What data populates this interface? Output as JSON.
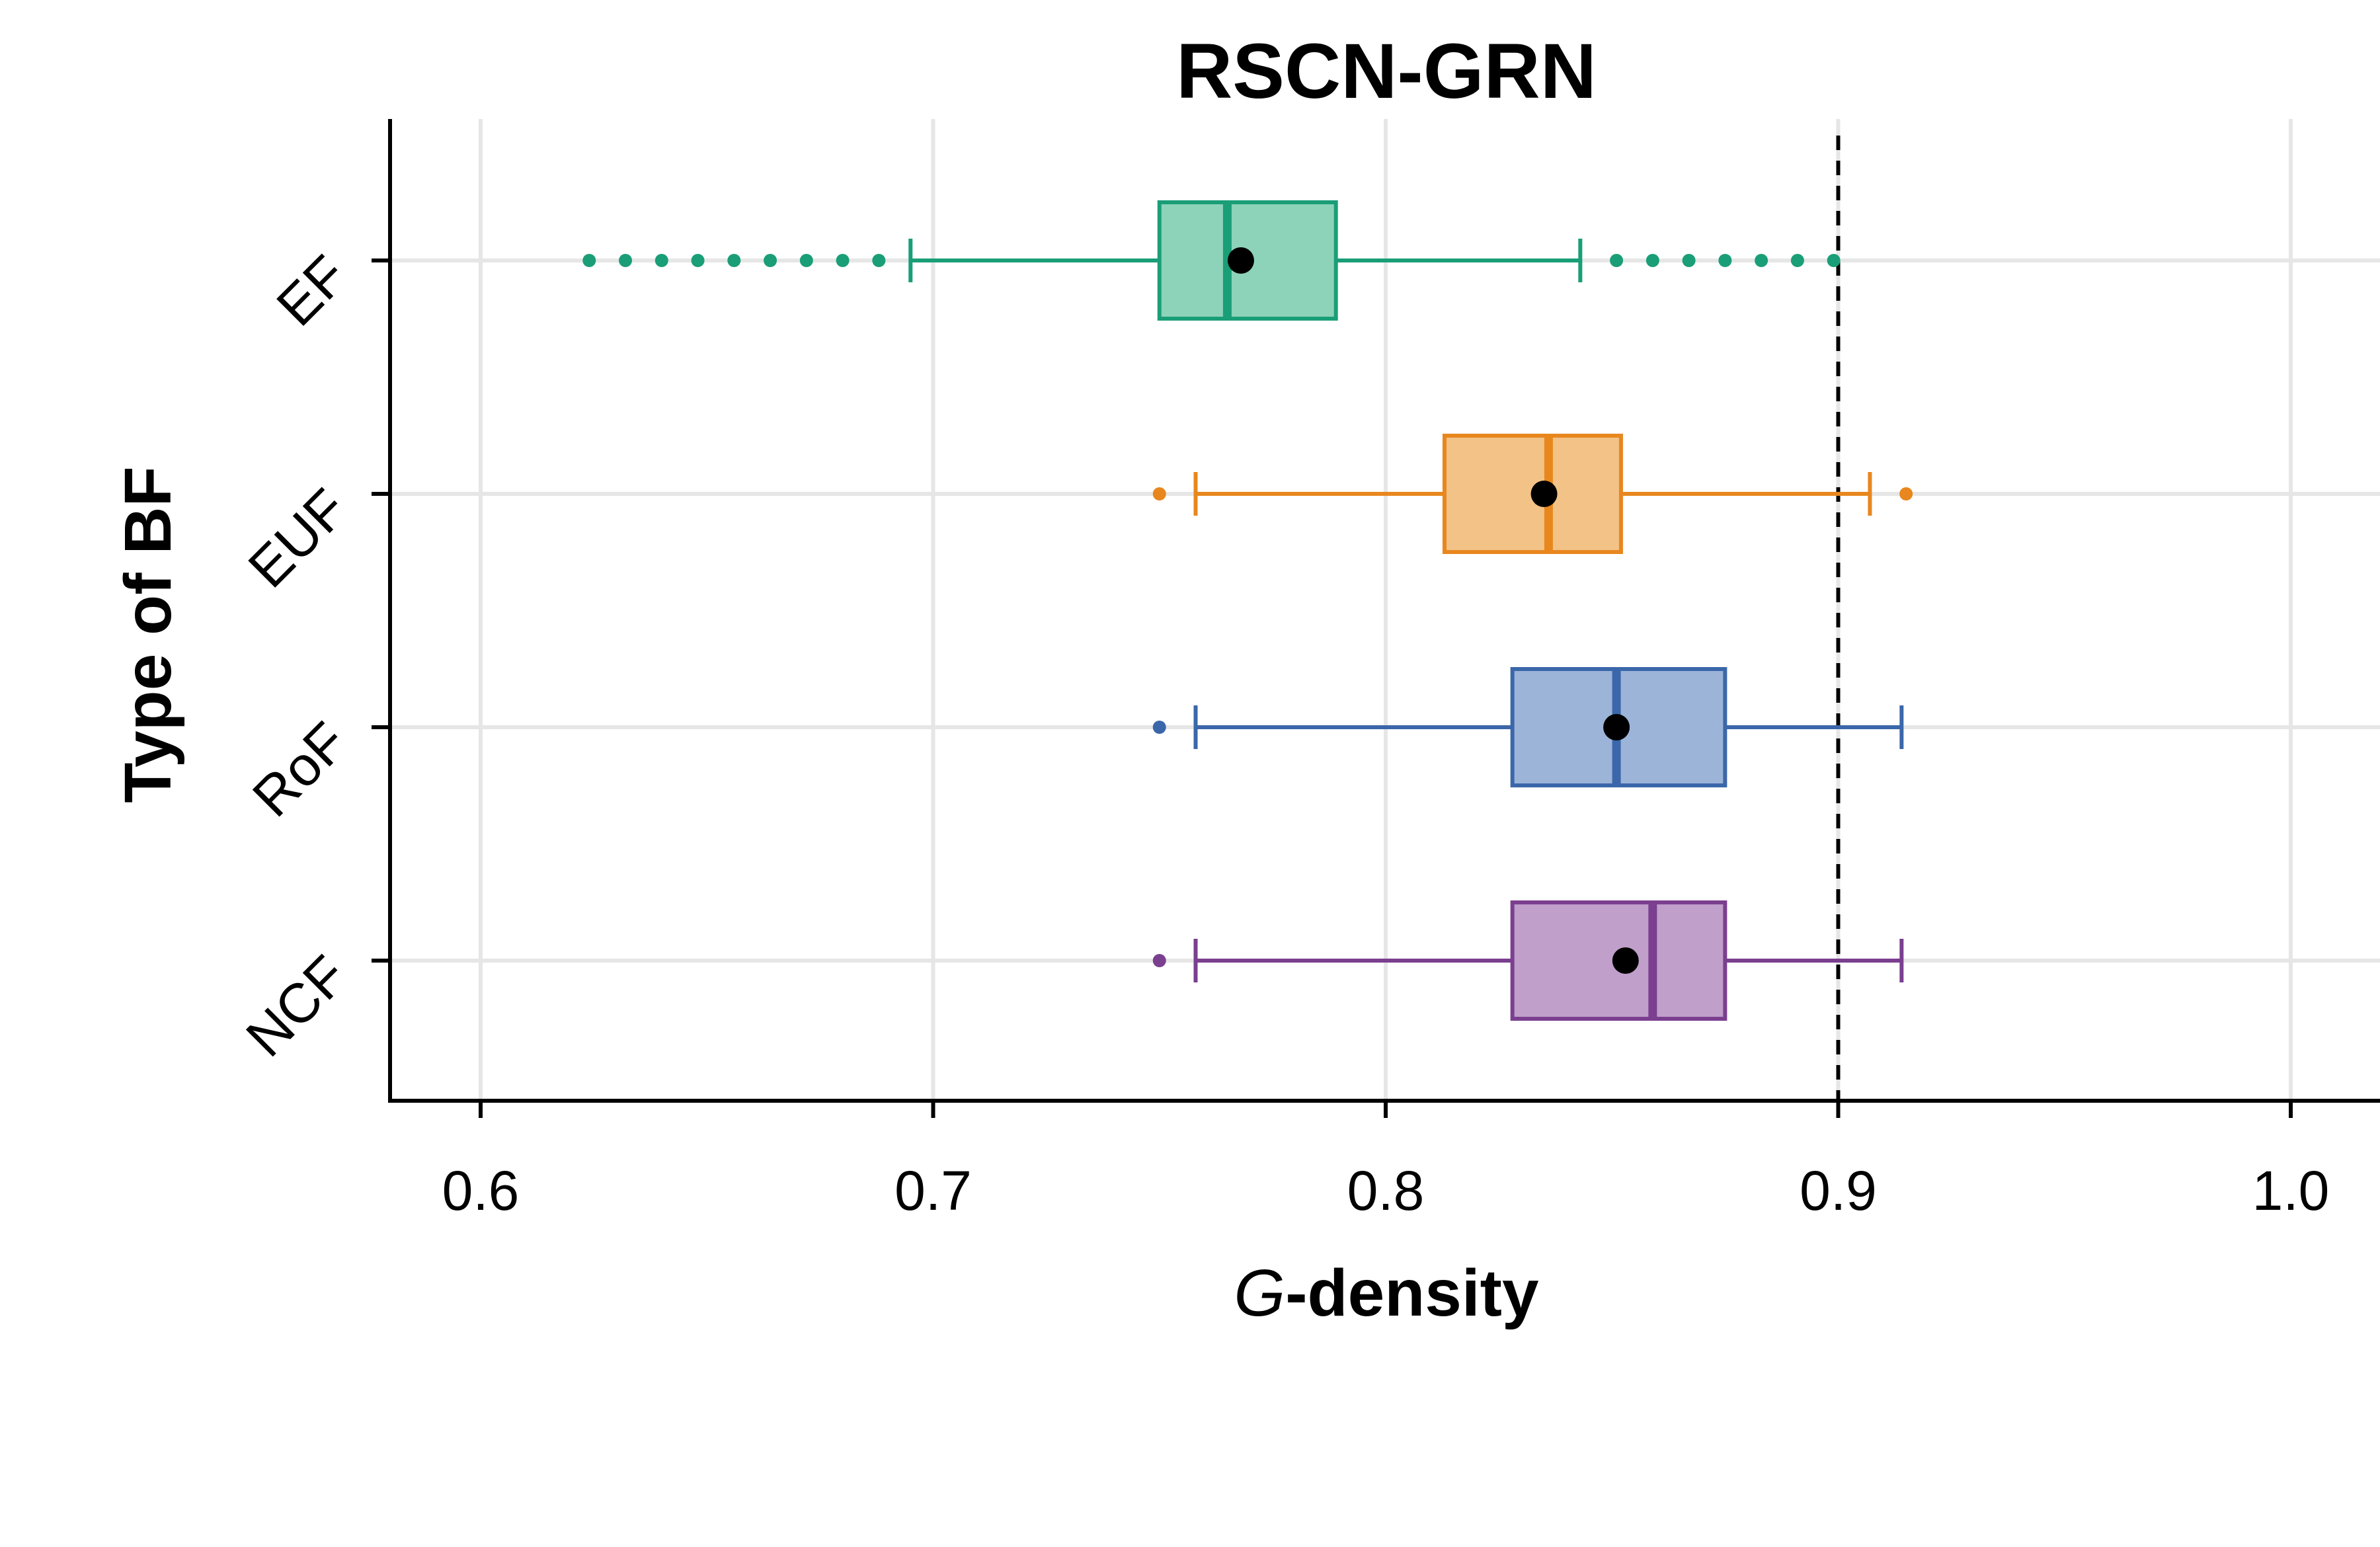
{
  "chart_data": {
    "type": "boxplot",
    "orientation": "horizontal",
    "title": "RSCN-GRN",
    "xlabel_italic": "G",
    "xlabel_rest": "-density",
    "ylabel": "Type of BF",
    "xlim": [
      0.58,
      1.02
    ],
    "xticks": [
      0.6,
      0.7,
      0.8,
      0.9,
      1.0
    ],
    "xtick_labels": [
      "0.6",
      "0.7",
      "0.8",
      "0.9",
      "1.0"
    ],
    "grid": true,
    "reference_line": 0.9,
    "categories": [
      "EF",
      "EUF",
      "RoF",
      "NCF"
    ],
    "boxes": [
      {
        "name": "EF",
        "color": "#1a9e77",
        "fill": "#8dd3b9",
        "whisker_low": 0.695,
        "q1": 0.75,
        "median": 0.765,
        "q3": 0.789,
        "whisker_high": 0.843,
        "mean": 0.768,
        "outliers": [
          0.624,
          0.632,
          0.64,
          0.648,
          0.656,
          0.664,
          0.672,
          0.68,
          0.688,
          0.851,
          0.859,
          0.867,
          0.875,
          0.883,
          0.891,
          0.899
        ]
      },
      {
        "name": "EUF",
        "color": "#e8871e",
        "fill": "#f2c287",
        "whisker_low": 0.758,
        "q1": 0.813,
        "median": 0.836,
        "q3": 0.852,
        "whisker_high": 0.907,
        "mean": 0.835,
        "outliers": [
          0.75,
          0.915
        ]
      },
      {
        "name": "RoF",
        "color": "#3b67aa",
        "fill": "#9db4d9",
        "whisker_low": 0.758,
        "q1": 0.828,
        "median": 0.851,
        "q3": 0.875,
        "whisker_high": 0.914,
        "mean": 0.851,
        "outliers": [
          0.75
        ]
      },
      {
        "name": "NCF",
        "color": "#7b3f8f",
        "fill": "#c09fca",
        "whisker_low": 0.758,
        "q1": 0.828,
        "median": 0.859,
        "q3": 0.875,
        "whisker_high": 0.914,
        "mean": 0.853,
        "outliers": [
          0.75
        ]
      }
    ],
    "mean_marker_color": "#000000",
    "grid_color": "#e6e6e6",
    "axis_color": "#000000"
  }
}
